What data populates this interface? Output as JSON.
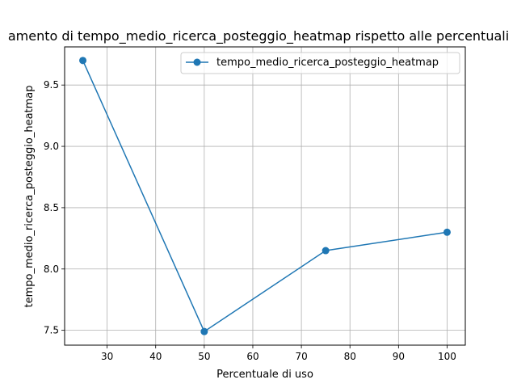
{
  "chart_data": {
    "type": "line",
    "title": "amento di tempo_medio_ricerca_posteggio_heatmap rispetto alle percentuali",
    "xlabel": "Percentuale di uso",
    "ylabel": "tempo_medio_ricerca_posteggio_heatmap",
    "xlim": [
      21.25,
      103.75
    ],
    "ylim": [
      7.379,
      9.811
    ],
    "xticks": [
      30,
      40,
      50,
      60,
      70,
      80,
      90,
      100
    ],
    "xtick_labels": [
      "30",
      "40",
      "50",
      "60",
      "70",
      "80",
      "90",
      "100"
    ],
    "yticks": [
      7.5,
      8.0,
      8.5,
      9.0,
      9.5
    ],
    "ytick_labels": [
      "7.5",
      "8.0",
      "8.5",
      "9.0",
      "9.5"
    ],
    "grid": true,
    "legend_position": "top-right",
    "series": [
      {
        "name": "tempo_medio_ricerca_posteggio_heatmap",
        "color": "#1f77b4",
        "marker": "circle",
        "x": [
          25,
          50,
          75,
          100
        ],
        "y": [
          9.7,
          7.49,
          8.15,
          8.3
        ]
      }
    ]
  }
}
